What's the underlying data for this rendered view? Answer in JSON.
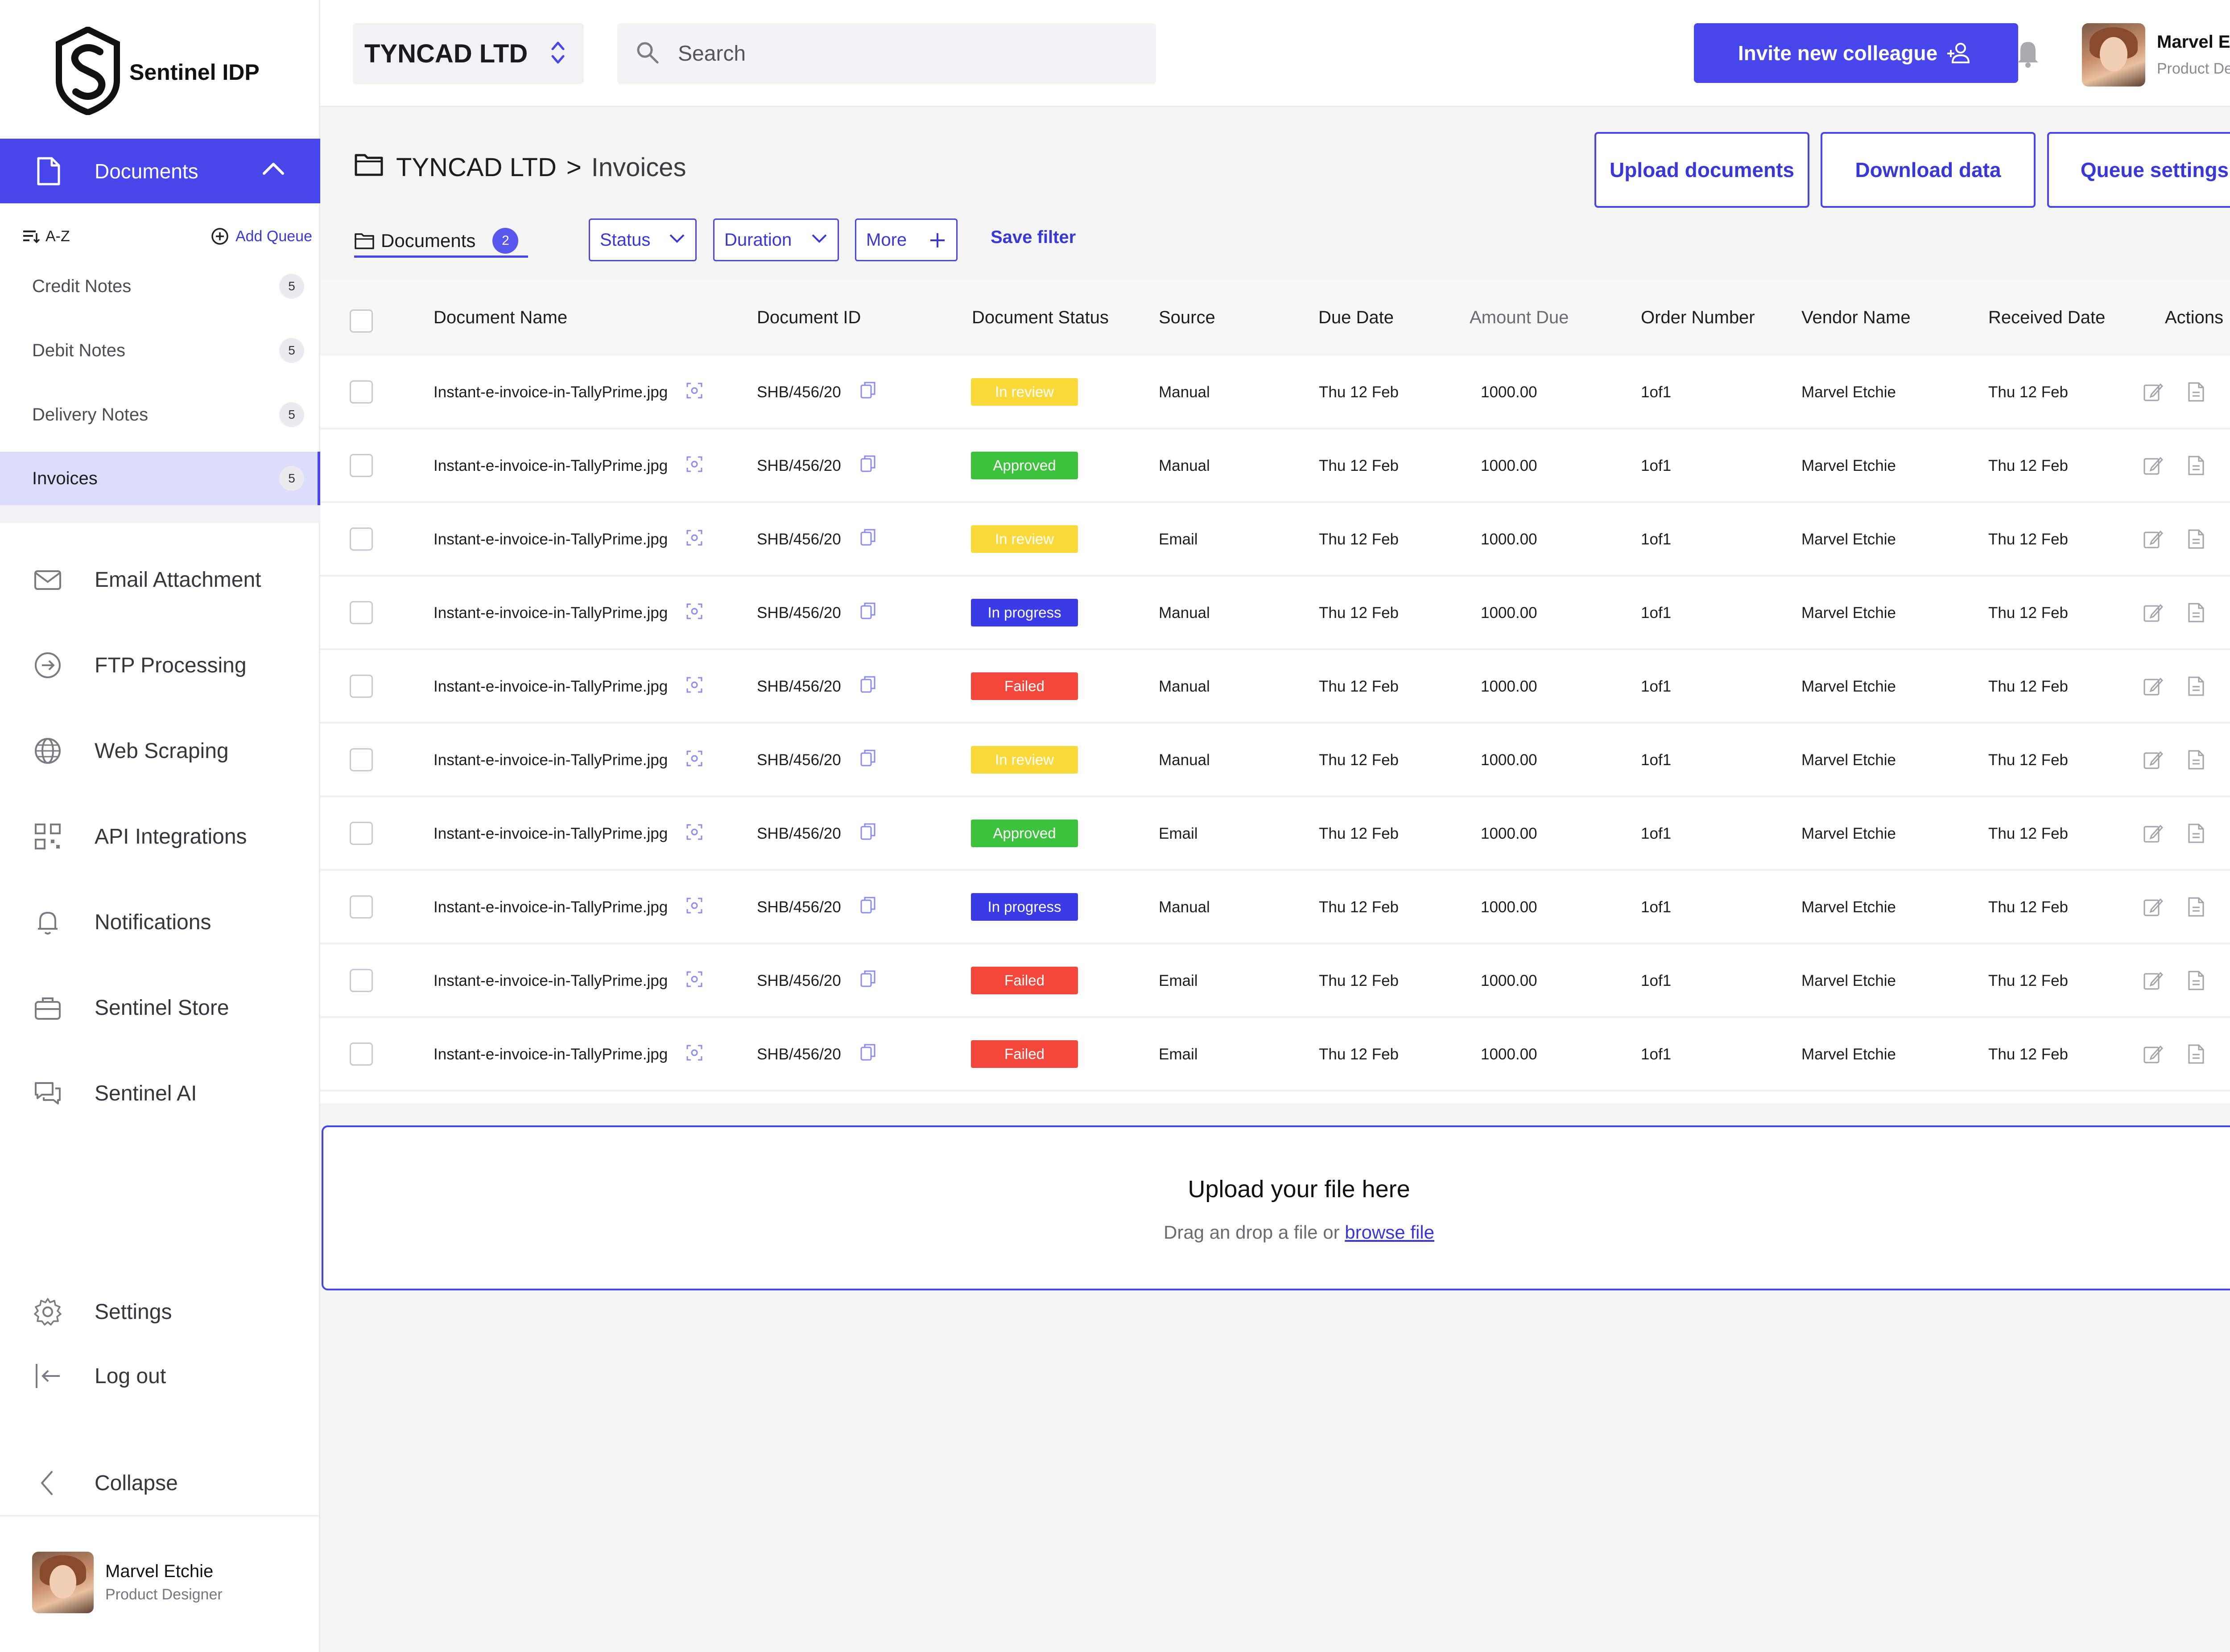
{
  "brand": {
    "name": "Sentinel IDP"
  },
  "sidebar": {
    "documents_label": "Documents",
    "sort_label": "A-Z",
    "add_queue_label": "Add Queue",
    "queues": [
      {
        "label": "Credit Notes",
        "count": "5"
      },
      {
        "label": "Debit Notes",
        "count": "5"
      },
      {
        "label": "Delivery Notes",
        "count": "5"
      },
      {
        "label": "Invoices",
        "count": "5"
      }
    ],
    "nav": [
      {
        "label": "Email Attachment",
        "icon": "mail-icon"
      },
      {
        "label": "FTP Processing",
        "icon": "arrow-circle-icon"
      },
      {
        "label": "Web Scraping",
        "icon": "globe-icon"
      },
      {
        "label": "API Integrations",
        "icon": "qr-grid-icon"
      },
      {
        "label": "Notifications",
        "icon": "bell-icon"
      },
      {
        "label": "Sentinel Store",
        "icon": "store-icon"
      },
      {
        "label": "Sentinel AI",
        "icon": "chat-icon"
      }
    ],
    "settings_label": "Settings",
    "logout_label": "Log out",
    "collapse_label": "Collapse",
    "user": {
      "name": "Marvel Etchie",
      "role": "Product Designer"
    }
  },
  "topbar": {
    "org": "TYNCAD LTD",
    "search_placeholder": "Search",
    "invite_label": "Invite new colleague",
    "user": {
      "name": "Marvel Etchie",
      "role": "Product Designer"
    }
  },
  "page": {
    "breadcrumb_org": "TYNCAD LTD",
    "breadcrumb_sep": ">",
    "breadcrumb_current": "Invoices",
    "actions": [
      "Upload documents",
      "Download data",
      "Queue settings"
    ],
    "tab_label": "Documents",
    "tab_count": "2",
    "filters": [
      "Status",
      "Duration",
      "More"
    ],
    "save_filter": "Save filter"
  },
  "table": {
    "headers": [
      "Document Name",
      "Document ID",
      "Document Status",
      "Source",
      "Due Date",
      "Amount Due",
      "Order Number",
      "Vendor Name",
      "Received Date",
      "Actions"
    ],
    "rows": [
      {
        "name": "Instant-e-invoice-in-TallyPrime.jpg",
        "id": "SHB/456/20",
        "status": "In review",
        "source": "Manual",
        "due": "Thu 12 Feb",
        "amount": "1000.00",
        "order": "1of1",
        "vendor": "Marvel Etchie",
        "received": "Thu 12 Feb"
      },
      {
        "name": "Instant-e-invoice-in-TallyPrime.jpg",
        "id": "SHB/456/20",
        "status": "Approved",
        "source": "Manual",
        "due": "Thu 12 Feb",
        "amount": "1000.00",
        "order": "1of1",
        "vendor": "Marvel Etchie",
        "received": "Thu 12 Feb"
      },
      {
        "name": "Instant-e-invoice-in-TallyPrime.jpg",
        "id": "SHB/456/20",
        "status": "In review",
        "source": "Email",
        "due": "Thu 12 Feb",
        "amount": "1000.00",
        "order": "1of1",
        "vendor": "Marvel Etchie",
        "received": "Thu 12 Feb"
      },
      {
        "name": "Instant-e-invoice-in-TallyPrime.jpg",
        "id": "SHB/456/20",
        "status": "In progress",
        "source": "Manual",
        "due": "Thu 12 Feb",
        "amount": "1000.00",
        "order": "1of1",
        "vendor": "Marvel Etchie",
        "received": "Thu 12 Feb"
      },
      {
        "name": "Instant-e-invoice-in-TallyPrime.jpg",
        "id": "SHB/456/20",
        "status": "Failed",
        "source": "Manual",
        "due": "Thu 12 Feb",
        "amount": "1000.00",
        "order": "1of1",
        "vendor": "Marvel Etchie",
        "received": "Thu 12 Feb"
      },
      {
        "name": "Instant-e-invoice-in-TallyPrime.jpg",
        "id": "SHB/456/20",
        "status": "In review",
        "source": "Manual",
        "due": "Thu 12 Feb",
        "amount": "1000.00",
        "order": "1of1",
        "vendor": "Marvel Etchie",
        "received": "Thu 12 Feb"
      },
      {
        "name": "Instant-e-invoice-in-TallyPrime.jpg",
        "id": "SHB/456/20",
        "status": "Approved",
        "source": "Email",
        "due": "Thu 12 Feb",
        "amount": "1000.00",
        "order": "1of1",
        "vendor": "Marvel Etchie",
        "received": "Thu 12 Feb"
      },
      {
        "name": "Instant-e-invoice-in-TallyPrime.jpg",
        "id": "SHB/456/20",
        "status": "In progress",
        "source": "Manual",
        "due": "Thu 12 Feb",
        "amount": "1000.00",
        "order": "1of1",
        "vendor": "Marvel Etchie",
        "received": "Thu 12 Feb"
      },
      {
        "name": "Instant-e-invoice-in-TallyPrime.jpg",
        "id": "SHB/456/20",
        "status": "Failed",
        "source": "Email",
        "due": "Thu 12 Feb",
        "amount": "1000.00",
        "order": "1of1",
        "vendor": "Marvel Etchie",
        "received": "Thu 12 Feb"
      },
      {
        "name": "Instant-e-invoice-in-TallyPrime.jpg",
        "id": "SHB/456/20",
        "status": "Failed",
        "source": "Email",
        "due": "Thu 12 Feb",
        "amount": "1000.00",
        "order": "1of1",
        "vendor": "Marvel Etchie",
        "received": "Thu 12 Feb"
      }
    ]
  },
  "status_colors": {
    "In review": "#fad93b",
    "Approved": "#3cc23c",
    "In progress": "#3a3ae6",
    "Failed": "#f4473b"
  },
  "colors": {
    "accent": "#4646ec",
    "sidebar_active": "#dcdcfc"
  },
  "upload": {
    "title": "Upload your file here",
    "subtitle": "Drag an drop a file or",
    "link": "browse file"
  }
}
